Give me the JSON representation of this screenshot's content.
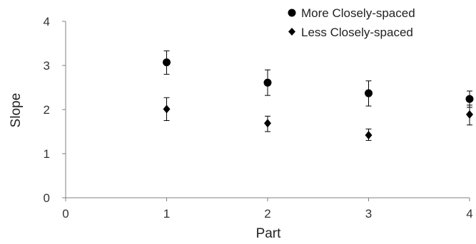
{
  "chart_data": {
    "type": "scatter",
    "title": "",
    "xlabel": "Part",
    "ylabel": "Slope",
    "xlim": [
      0,
      4
    ],
    "ylim": [
      0,
      4
    ],
    "x_ticks": [
      "0",
      "1",
      "2",
      "3",
      "4"
    ],
    "y_ticks": [
      "0",
      "1",
      "2",
      "3",
      "4"
    ],
    "grid": false,
    "legend_position": "top-right",
    "series": [
      {
        "name": "More Closely-spaced",
        "marker": "circle",
        "color": "#000000",
        "points": [
          {
            "x": 1,
            "y": 3.07,
            "err_low": 2.8,
            "err_high": 3.33
          },
          {
            "x": 2,
            "y": 2.61,
            "err_low": 2.32,
            "err_high": 2.9
          },
          {
            "x": 3,
            "y": 2.37,
            "err_low": 2.08,
            "err_high": 2.65
          },
          {
            "x": 4,
            "y": 2.24,
            "err_low": 2.05,
            "err_high": 2.42
          }
        ]
      },
      {
        "name": "Less Closely-spaced",
        "marker": "diamond",
        "color": "#000000",
        "points": [
          {
            "x": 1,
            "y": 2.01,
            "err_low": 1.75,
            "err_high": 2.27
          },
          {
            "x": 2,
            "y": 1.69,
            "err_low": 1.5,
            "err_high": 1.85
          },
          {
            "x": 3,
            "y": 1.42,
            "err_low": 1.3,
            "err_high": 1.56
          },
          {
            "x": 4,
            "y": 1.89,
            "err_low": 1.65,
            "err_high": 2.1
          }
        ]
      }
    ]
  }
}
